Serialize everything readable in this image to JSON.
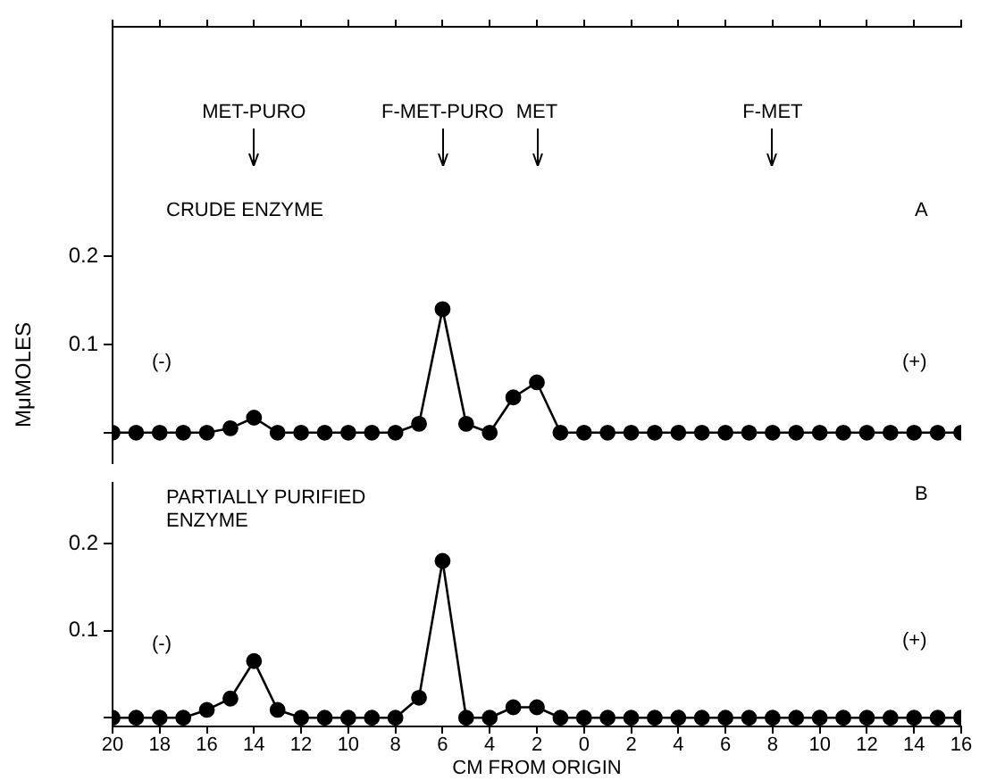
{
  "chart_data": [
    {
      "type": "line",
      "ylabel": "MμMOLES",
      "x": [
        -20,
        -19,
        -18,
        -17,
        -16,
        -15,
        -14,
        -13,
        -12,
        -11,
        -10,
        -9,
        -8,
        -7,
        -6,
        -5,
        -4,
        -3,
        -2,
        -1,
        0,
        1,
        2,
        3,
        4,
        5,
        6,
        7,
        8,
        9,
        10,
        11,
        12,
        13,
        14,
        15,
        16
      ],
      "series": [
        {
          "color": "#000000",
          "values": [
            0,
            0,
            0,
            0,
            0,
            0.005,
            0.017,
            0,
            0,
            0,
            0,
            0,
            0,
            0.01,
            0.14,
            0.01,
            0,
            0.04,
            0.057,
            0,
            0,
            0,
            0,
            0,
            0,
            0,
            0,
            0,
            0,
            0,
            0,
            0,
            0,
            0,
            0,
            0,
            0
          ]
        }
      ],
      "xlim": [
        -20,
        16
      ],
      "xticks": [
        {
          "value": -20,
          "label": null
        },
        {
          "value": -18,
          "label": null
        },
        {
          "value": -16,
          "label": null
        },
        {
          "value": -14,
          "label": null
        },
        {
          "value": -12,
          "label": null
        },
        {
          "value": -10,
          "label": null
        },
        {
          "value": -8,
          "label": null
        },
        {
          "value": -6,
          "label": null
        },
        {
          "value": -4,
          "label": null
        },
        {
          "value": -2,
          "label": null
        },
        {
          "value": 0,
          "label": null
        },
        {
          "value": 2,
          "label": null
        },
        {
          "value": 4,
          "label": null
        },
        {
          "value": 6,
          "label": null
        },
        {
          "value": 8,
          "label": null
        },
        {
          "value": 10,
          "label": null
        },
        {
          "value": 12,
          "label": null
        },
        {
          "value": 14,
          "label": null
        },
        {
          "value": 16,
          "label": null
        }
      ],
      "ylim": [
        -0.035,
        0.46
      ],
      "yticks": [
        {
          "value": 0,
          "label": null
        },
        {
          "value": 0.1,
          "label": "0.1"
        },
        {
          "value": 0.2,
          "label": "0.2"
        }
      ],
      "tick_labels": "y",
      "grid": false,
      "legend": false,
      "marker": "circle",
      "line_style": "solid",
      "annotations": [
        {
          "text": "MET-PURO",
          "x": -14
        },
        {
          "text": "F-MET-PURO",
          "x": -6
        },
        {
          "text": "MET",
          "x": -2
        },
        {
          "text": "F-MET",
          "x": 8
        },
        "CRUDE ENZYME",
        "A",
        "(-)",
        "(+)"
      ]
    },
    {
      "type": "line",
      "xlabel": "CM FROM ORIGIN",
      "x": [
        -20,
        -19,
        -18,
        -17,
        -16,
        -15,
        -14,
        -13,
        -12,
        -11,
        -10,
        -9,
        -8,
        -7,
        -6,
        -5,
        -4,
        -3,
        -2,
        -1,
        0,
        1,
        2,
        3,
        4,
        5,
        6,
        7,
        8,
        9,
        10,
        11,
        12,
        13,
        14,
        15,
        16
      ],
      "series": [
        {
          "color": "#000000",
          "values": [
            0,
            0,
            0,
            0,
            0.009,
            0.022,
            0.065,
            0.009,
            0,
            0,
            0,
            0,
            0,
            0.023,
            0.18,
            0,
            0,
            0.012,
            0.012,
            0,
            0,
            0,
            0,
            0,
            0,
            0,
            0,
            0,
            0,
            0,
            0,
            0,
            0,
            0,
            0,
            0,
            0
          ]
        }
      ],
      "xlim": [
        -20,
        16
      ],
      "xticks": [
        {
          "value": -20,
          "label": "20"
        },
        {
          "value": -18,
          "label": "18"
        },
        {
          "value": -16,
          "label": "16"
        },
        {
          "value": -14,
          "label": "14"
        },
        {
          "value": -12,
          "label": "12"
        },
        {
          "value": -10,
          "label": "10"
        },
        {
          "value": -8,
          "label": "8"
        },
        {
          "value": -6,
          "label": "6"
        },
        {
          "value": -4,
          "label": "4"
        },
        {
          "value": -2,
          "label": "2"
        },
        0,
        2,
        4,
        6,
        8,
        10,
        12,
        14,
        16
      ],
      "ylim": [
        -0.01,
        0.27
      ],
      "yticks": [
        {
          "value": 0,
          "label": null
        },
        {
          "value": 0.1,
          "label": "0.1"
        },
        {
          "value": 0.2,
          "label": "0.2"
        }
      ],
      "grid": false,
      "legend": false,
      "marker": "circle",
      "line_style": "solid",
      "annotations": [
        "PARTIALLY PURIFIED ENZYME",
        "B",
        "(-)",
        "(+)"
      ]
    }
  ]
}
